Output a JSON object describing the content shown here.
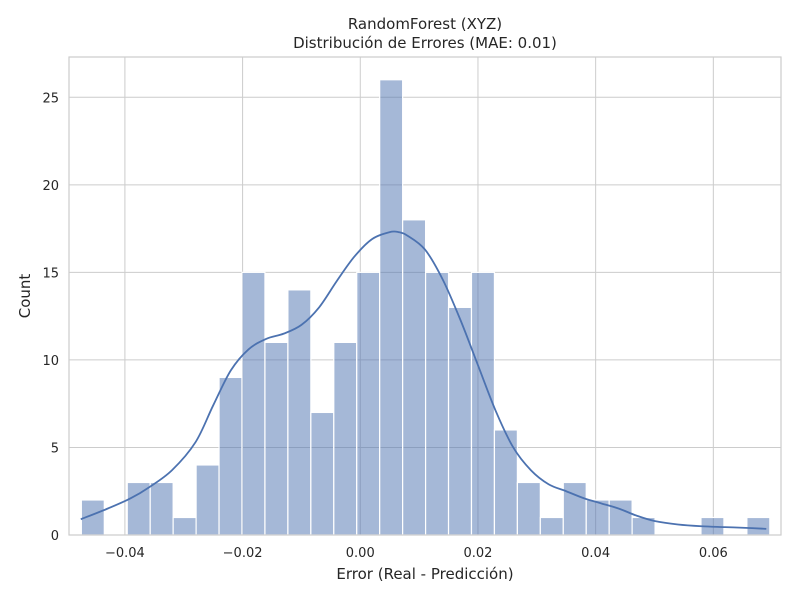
{
  "chart_data": {
    "type": "bar",
    "title": "RandomForest (XYZ)",
    "subtitle": "Distribución de Errores (MAE: 0.01)",
    "xlabel": "Error (Real - Predicción)",
    "ylabel": "Count",
    "xlim": [
      -0.0495,
      0.0715
    ],
    "ylim": [
      0,
      27.3
    ],
    "grid": true,
    "bin_width": 0.0039,
    "bins": [
      {
        "start": -0.0474,
        "count": 2
      },
      {
        "start": -0.0435,
        "count": 0
      },
      {
        "start": -0.0396,
        "count": 3
      },
      {
        "start": -0.0357,
        "count": 3
      },
      {
        "start": -0.0318,
        "count": 1
      },
      {
        "start": -0.0279,
        "count": 4
      },
      {
        "start": -0.024,
        "count": 9
      },
      {
        "start": -0.0201,
        "count": 15
      },
      {
        "start": -0.0162,
        "count": 11
      },
      {
        "start": -0.0123,
        "count": 14
      },
      {
        "start": -0.0084,
        "count": 7
      },
      {
        "start": -0.0045,
        "count": 11
      },
      {
        "start": -0.0006,
        "count": 15
      },
      {
        "start": 0.0033,
        "count": 26
      },
      {
        "start": 0.0072,
        "count": 18
      },
      {
        "start": 0.0111,
        "count": 15
      },
      {
        "start": 0.015,
        "count": 13
      },
      {
        "start": 0.0189,
        "count": 15
      },
      {
        "start": 0.0228,
        "count": 6
      },
      {
        "start": 0.0267,
        "count": 3
      },
      {
        "start": 0.0306,
        "count": 1
      },
      {
        "start": 0.0345,
        "count": 3
      },
      {
        "start": 0.0384,
        "count": 2
      },
      {
        "start": 0.0423,
        "count": 2
      },
      {
        "start": 0.0462,
        "count": 1
      },
      {
        "start": 0.0501,
        "count": 0
      },
      {
        "start": 0.054,
        "count": 0
      },
      {
        "start": 0.0579,
        "count": 1
      },
      {
        "start": 0.0618,
        "count": 0
      },
      {
        "start": 0.0657,
        "count": 1
      }
    ],
    "kde": {
      "x": [
        -0.0475,
        -0.043,
        -0.039,
        -0.036,
        -0.032,
        -0.028,
        -0.025,
        -0.022,
        -0.019,
        -0.016,
        -0.013,
        -0.01,
        -0.007,
        -0.004,
        -0.001,
        0.002,
        0.005,
        0.0065,
        0.008,
        0.011,
        0.014,
        0.017,
        0.02,
        0.023,
        0.026,
        0.029,
        0.032,
        0.035,
        0.038,
        0.041,
        0.044,
        0.047,
        0.05,
        0.054,
        0.058,
        0.062,
        0.066,
        0.069
      ],
      "y": [
        0.9,
        1.5,
        2.1,
        2.7,
        3.7,
        5.3,
        7.4,
        9.4,
        10.6,
        11.2,
        11.5,
        12.0,
        13.0,
        14.5,
        15.9,
        16.9,
        17.3,
        17.3,
        17.1,
        16.3,
        14.6,
        12.3,
        9.7,
        7.1,
        5.0,
        3.7,
        2.9,
        2.5,
        2.1,
        1.8,
        1.5,
        1.1,
        0.8,
        0.6,
        0.5,
        0.45,
        0.4,
        0.35
      ]
    },
    "x_ticks": [
      {
        "value": -0.04,
        "label": "−0.04"
      },
      {
        "value": -0.02,
        "label": "−0.02"
      },
      {
        "value": 0.0,
        "label": "0.00"
      },
      {
        "value": 0.02,
        "label": "0.02"
      },
      {
        "value": 0.04,
        "label": "0.04"
      },
      {
        "value": 0.06,
        "label": "0.06"
      }
    ],
    "y_ticks": [
      {
        "value": 0,
        "label": "0"
      },
      {
        "value": 5,
        "label": "5"
      },
      {
        "value": 10,
        "label": "10"
      },
      {
        "value": 15,
        "label": "15"
      },
      {
        "value": 20,
        "label": "20"
      },
      {
        "value": 25,
        "label": "25"
      }
    ],
    "colors": {
      "bar_fill": "#a5b8d8",
      "bar_edge": "#ffffff",
      "kde_line": "#4c72b0",
      "grid": "#cccccc"
    }
  }
}
